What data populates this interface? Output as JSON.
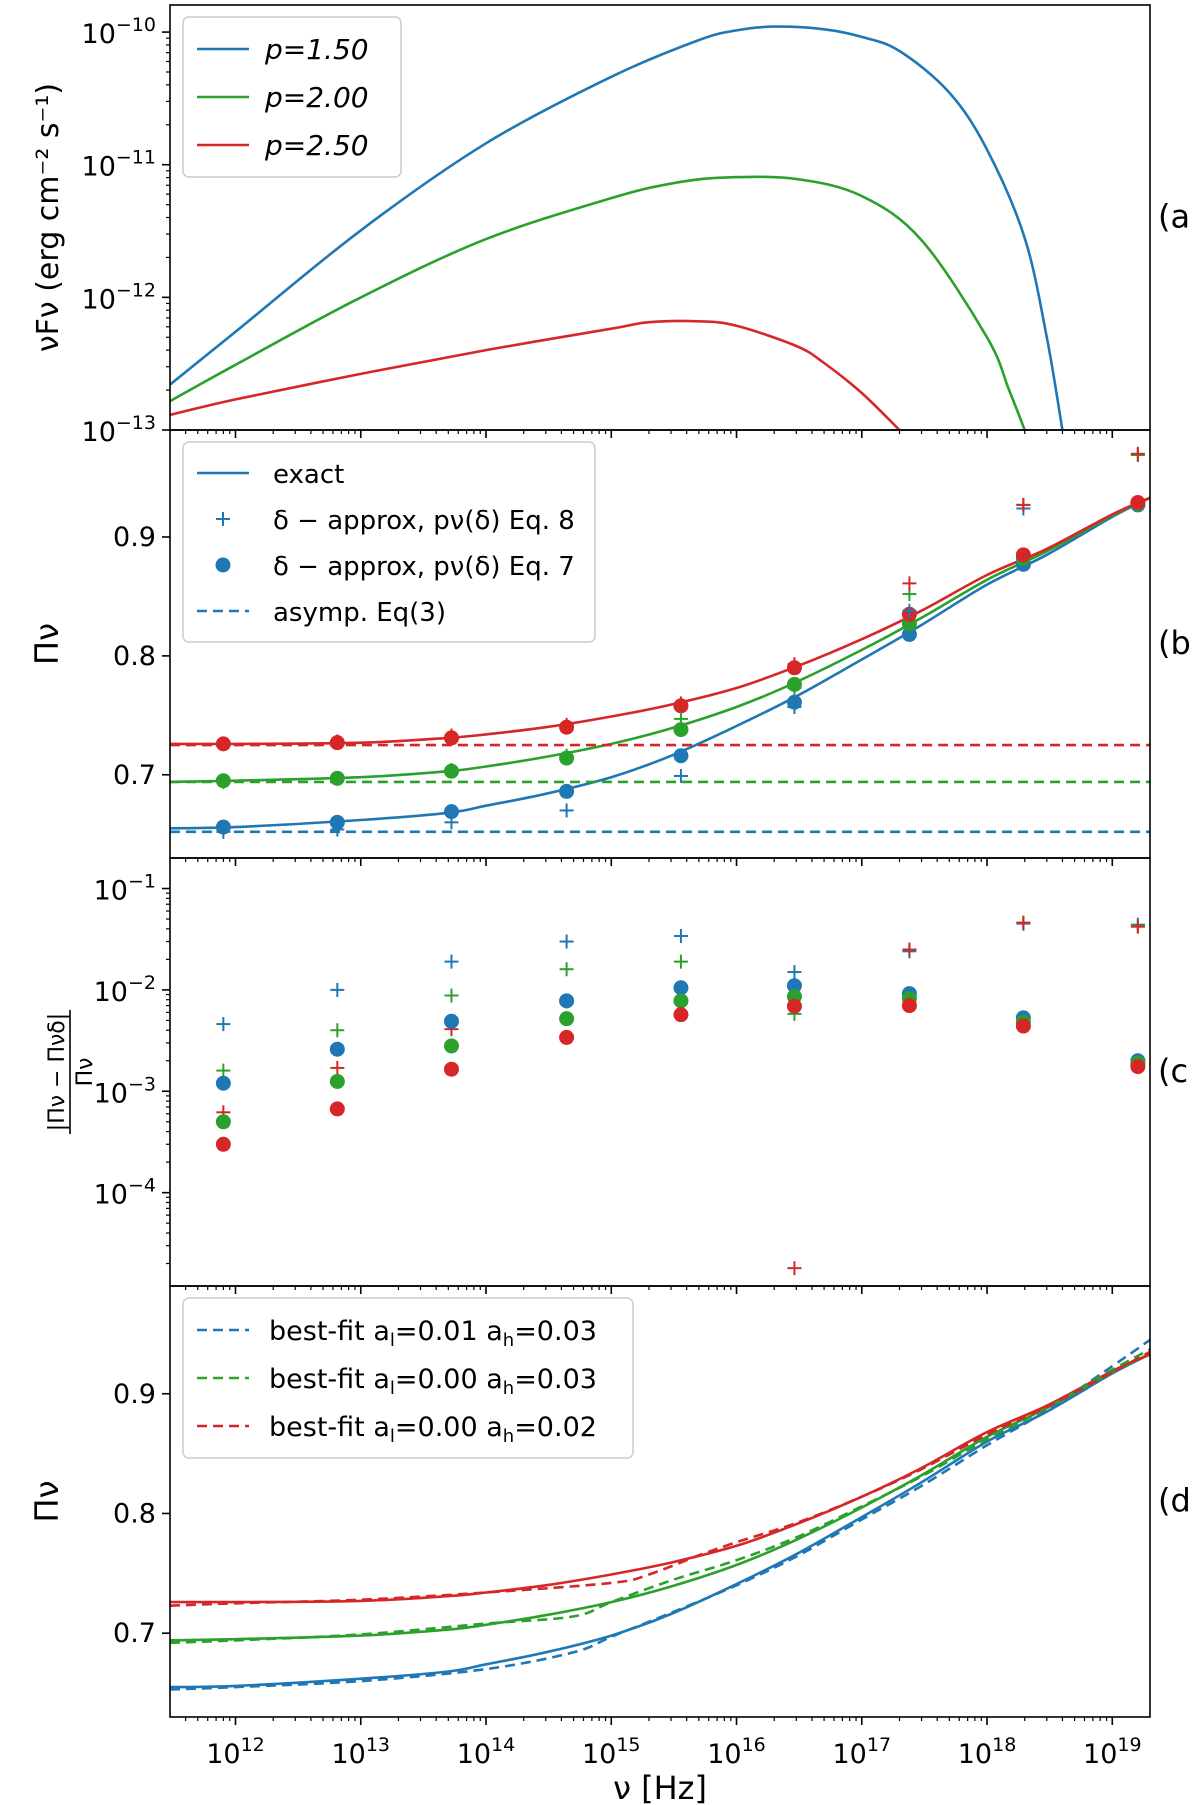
{
  "colors": {
    "blue": "#1f77b4",
    "green": "#2ca02c",
    "red": "#d62728",
    "axis": "#000000"
  },
  "xaxis": {
    "scale": "log",
    "lim": [
      300000000000.0,
      2e+19
    ],
    "label": "ν [Hz]",
    "ticks": [
      {
        "v": 1000000000000.0,
        "mant": "10",
        "exp": "12"
      },
      {
        "v": 10000000000000.0,
        "mant": "10",
        "exp": "13"
      },
      {
        "v": 100000000000000.0,
        "mant": "10",
        "exp": "14"
      },
      {
        "v": 1000000000000000.0,
        "mant": "10",
        "exp": "15"
      },
      {
        "v": 1e+16,
        "mant": "10",
        "exp": "16"
      },
      {
        "v": 1e+17,
        "mant": "10",
        "exp": "17"
      },
      {
        "v": 1e+18,
        "mant": "10",
        "exp": "18"
      },
      {
        "v": 1e+19,
        "mant": "10",
        "exp": "19"
      }
    ]
  },
  "chart_data": [
    {
      "panel": "a",
      "panel_label": "(a",
      "type": "line",
      "yscale": "log",
      "ylim": [
        1e-13,
        1.6e-10
      ],
      "ylabel": "νFν (erg cm⁻² s⁻¹)",
      "yticks": [
        {
          "v": 1e-13,
          "mant": "10",
          "exp": "−13"
        },
        {
          "v": 1e-12,
          "mant": "10",
          "exp": "−12"
        },
        {
          "v": 1e-11,
          "mant": "10",
          "exp": "−11"
        },
        {
          "v": 1e-10,
          "mant": "10",
          "exp": "−10"
        }
      ],
      "legend": {
        "position": "top-left",
        "entries": [
          {
            "label": "p=1.50",
            "color": "blue",
            "style": "solid"
          },
          {
            "label": "p=2.00",
            "color": "green",
            "style": "solid"
          },
          {
            "label": "p=2.50",
            "color": "red",
            "style": "solid"
          }
        ]
      },
      "series": [
        {
          "name": "p=1.50",
          "color": "blue",
          "style": "solid",
          "x": [
            300000000000.0,
            1000000000000.0,
            10000000000000.0,
            100000000000000.0,
            1000000000000000.0,
            5000000000000000.0,
            1e+16,
            2e+16,
            5e+16,
            1e+17,
            2e+17,
            5e+17,
            1e+18,
            2e+18,
            3e+18,
            4e+18
          ],
          "y": [
            2.2e-13,
            5.5e-13,
            3.2e-12,
            1.45e-11,
            4.6e-11,
            8.7e-11,
            1.03e-10,
            1.1e-10,
            1.05e-10,
            9.2e-11,
            7.2e-11,
            3.5e-11,
            1.3e-11,
            2.8e-12,
            5e-13,
            1e-13
          ]
        },
        {
          "name": "p=2.00",
          "color": "green",
          "style": "solid",
          "x": [
            300000000000.0,
            1000000000000.0,
            10000000000000.0,
            100000000000000.0,
            1000000000000000.0,
            3000000000000000.0,
            8000000000000000.0,
            3e+16,
            1e+17,
            3e+17,
            1e+18,
            1.5e+18,
            2e+18
          ],
          "y": [
            1.65e-13,
            3.1e-13,
            1e-12,
            2.75e-12,
            5.6e-12,
            7.2e-12,
            8e-12,
            7.8e-12,
            5.8e-12,
            2.7e-12,
            5e-13,
            2e-13,
            1e-13
          ]
        },
        {
          "name": "p=2.50",
          "color": "red",
          "style": "solid",
          "x": [
            300000000000.0,
            1000000000000.0,
            10000000000000.0,
            100000000000000.0,
            1000000000000000.0,
            2000000000000000.0,
            5000000000000000.0,
            1e+16,
            3e+16,
            5e+16,
            1e+17,
            2e+17
          ],
          "y": [
            1.3e-13,
            1.7e-13,
            2.65e-13,
            4e-13,
            5.8e-13,
            6.5e-13,
            6.6e-13,
            6.1e-13,
            4.3e-13,
            3.2e-13,
            1.9e-13,
            1e-13
          ]
        }
      ]
    },
    {
      "panel": "b",
      "panel_label": "(b",
      "type": "line",
      "yscale": "linear",
      "ylim": [
        0.63,
        0.99
      ],
      "ylabel": "Πν",
      "yticks": [
        {
          "v": 0.7,
          "text": "0.7"
        },
        {
          "v": 0.8,
          "text": "0.8"
        },
        {
          "v": 0.9,
          "text": "0.9"
        }
      ],
      "legend": {
        "position": "top-left",
        "entries": [
          {
            "label": "exact",
            "marker": "line",
            "color": "blue"
          },
          {
            "label": "δ − approx, pν(δ) Eq. 8",
            "marker": "plus",
            "color": "blue"
          },
          {
            "label": "δ − approx, pν(δ) Eq. 7",
            "marker": "dot",
            "color": "blue"
          },
          {
            "label": "asymp. Eq(3)",
            "marker": "dash",
            "color": "blue"
          }
        ]
      },
      "x_points": [
        800000000000.0,
        6500000000000.0,
        53000000000000.0,
        440000000000000.0,
        3600000000000000.0,
        2.9e+16,
        2.4e+17,
        1.95e+18,
        1.6e+19
      ],
      "series": [
        {
          "name": "p=1.50 exact",
          "color": "blue",
          "style": "solid",
          "x": [
            300000000000.0,
            1000000000000.0,
            10000000000000.0,
            50000000000000.0,
            100000000000000.0,
            300000000000000.0,
            1000000000000000.0,
            3000000000000000.0,
            1e+16,
            3e+16,
            1e+17,
            3e+17,
            1e+18,
            3e+18,
            1e+19,
            2e+19
          ],
          "y": [
            0.655,
            0.656,
            0.662,
            0.668,
            0.674,
            0.684,
            0.698,
            0.716,
            0.741,
            0.766,
            0.797,
            0.826,
            0.86,
            0.885,
            0.917,
            0.933
          ]
        },
        {
          "name": "p=2.00 exact",
          "color": "green",
          "style": "solid",
          "x": [
            300000000000.0,
            1000000000000.0,
            10000000000000.0,
            50000000000000.0,
            100000000000000.0,
            300000000000000.0,
            1000000000000000.0,
            3000000000000000.0,
            1e+16,
            3e+16,
            1e+17,
            3e+17,
            1e+18,
            3e+18,
            1e+19,
            2e+19
          ],
          "y": [
            0.694,
            0.695,
            0.698,
            0.703,
            0.707,
            0.715,
            0.726,
            0.739,
            0.757,
            0.778,
            0.805,
            0.832,
            0.864,
            0.888,
            0.918,
            0.933
          ]
        },
        {
          "name": "p=2.50 exact",
          "color": "red",
          "style": "solid",
          "x": [
            300000000000.0,
            1000000000000.0,
            10000000000000.0,
            50000000000000.0,
            100000000000000.0,
            300000000000000.0,
            1000000000000000.0,
            3000000000000000.0,
            1e+16,
            3e+16,
            1e+17,
            3e+17,
            1e+18,
            3e+18,
            1e+19,
            2e+19
          ],
          "y": [
            0.726,
            0.726,
            0.727,
            0.731,
            0.734,
            0.74,
            0.749,
            0.759,
            0.773,
            0.791,
            0.814,
            0.838,
            0.868,
            0.89,
            0.919,
            0.933
          ]
        },
        {
          "name": "p=1.50 asymp",
          "color": "blue",
          "style": "dashed",
          "x": [
            300000000000.0,
            2e+19
          ],
          "y": [
            0.652,
            0.652
          ]
        },
        {
          "name": "p=2.00 asymp",
          "color": "green",
          "style": "dashed",
          "x": [
            300000000000.0,
            2e+19
          ],
          "y": [
            0.694,
            0.694
          ]
        },
        {
          "name": "p=2.50 asymp",
          "color": "red",
          "style": "dashed",
          "x": [
            300000000000.0,
            2e+19
          ],
          "y": [
            0.725,
            0.725
          ]
        },
        {
          "name": "p=1.50 Eq.7",
          "color": "blue",
          "marker": "dot",
          "y": [
            0.656,
            0.66,
            0.669,
            0.686,
            0.716,
            0.761,
            0.818,
            0.877,
            0.927
          ]
        },
        {
          "name": "p=2.00 Eq.7",
          "color": "green",
          "marker": "dot",
          "y": [
            0.695,
            0.697,
            0.703,
            0.714,
            0.738,
            0.776,
            0.827,
            0.882,
            0.928
          ]
        },
        {
          "name": "p=2.50 Eq.7",
          "color": "red",
          "marker": "dot",
          "y": [
            0.726,
            0.727,
            0.731,
            0.74,
            0.758,
            0.79,
            0.835,
            0.885,
            0.929
          ]
        },
        {
          "name": "p=1.50 Eq.8",
          "color": "blue",
          "marker": "plus",
          "y": [
            0.652,
            0.654,
            0.66,
            0.67,
            0.699,
            0.757,
            0.838,
            0.924,
            0.969
          ]
        },
        {
          "name": "p=2.00 Eq.8",
          "color": "green",
          "marker": "plus",
          "y": [
            0.694,
            0.697,
            0.704,
            0.716,
            0.747,
            0.773,
            0.852,
            0.927,
            0.969
          ]
        },
        {
          "name": "p=2.50 Eq.8",
          "color": "red",
          "marker": "plus",
          "y": [
            0.726,
            0.728,
            0.733,
            0.742,
            0.76,
            0.793,
            0.861,
            0.927,
            0.97
          ]
        }
      ]
    },
    {
      "panel": "c",
      "panel_label": "(c",
      "type": "scatter",
      "yscale": "log",
      "ylim": [
        1.2e-05,
        0.2
      ],
      "ylabel": "|Πν − Πνδ| / Πν",
      "yticks": [
        {
          "v": 0.0001,
          "mant": "10",
          "exp": "−4"
        },
        {
          "v": 0.001,
          "mant": "10",
          "exp": "−3"
        },
        {
          "v": 0.01,
          "mant": "10",
          "exp": "−2"
        },
        {
          "v": 0.1,
          "mant": "10",
          "exp": "−1"
        }
      ],
      "x_points": [
        800000000000.0,
        6500000000000.0,
        53000000000000.0,
        440000000000000.0,
        3600000000000000.0,
        2.9e+16,
        2.4e+17,
        1.95e+18,
        1.6e+19
      ],
      "series": [
        {
          "name": "p=1.50 Eq.8",
          "color": "blue",
          "marker": "plus",
          "y": [
            0.0046,
            0.01,
            0.019,
            0.03,
            0.034,
            0.015,
            0.024,
            0.045,
            0.044
          ]
        },
        {
          "name": "p=2.00 Eq.8",
          "color": "green",
          "marker": "plus",
          "y": [
            0.0016,
            0.004,
            0.0088,
            0.016,
            0.019,
            0.0058,
            0.025,
            0.046,
            0.043
          ]
        },
        {
          "name": "p=2.50 Eq.8",
          "color": "red",
          "marker": "plus",
          "y": [
            0.00062,
            0.0017,
            0.0041,
            0.0077,
            0.01,
            1.8e-05,
            0.025,
            0.046,
            0.042
          ]
        },
        {
          "name": "p=1.50 Eq.7",
          "color": "blue",
          "marker": "dot",
          "y": [
            0.0012,
            0.0026,
            0.0049,
            0.0078,
            0.0105,
            0.011,
            0.0092,
            0.0053,
            0.002
          ]
        },
        {
          "name": "p=2.00 Eq.7",
          "color": "green",
          "marker": "dot",
          "y": [
            0.0005,
            0.00125,
            0.0028,
            0.0052,
            0.0078,
            0.0086,
            0.0082,
            0.0048,
            0.0019
          ]
        },
        {
          "name": "p=2.50 Eq.7",
          "color": "red",
          "marker": "dot",
          "y": [
            0.0003,
            0.00067,
            0.00165,
            0.0034,
            0.0057,
            0.0069,
            0.007,
            0.0044,
            0.00175
          ]
        }
      ]
    },
    {
      "panel": "d",
      "panel_label": "(d",
      "type": "line",
      "yscale": "linear",
      "ylim": [
        0.63,
        0.99
      ],
      "ylabel": "Πν",
      "yticks": [
        {
          "v": 0.7,
          "text": "0.7"
        },
        {
          "v": 0.8,
          "text": "0.8"
        },
        {
          "v": 0.9,
          "text": "0.9"
        }
      ],
      "legend": {
        "position": "top-left",
        "entries": [
          {
            "color": "blue",
            "style": "dashed",
            "prefix": "best-fit ",
            "a_l": "0.01",
            "a_h": "0.03"
          },
          {
            "color": "green",
            "style": "dashed",
            "prefix": "best-fit ",
            "a_l": "0.00",
            "a_h": "0.03"
          },
          {
            "color": "red",
            "style": "dashed",
            "prefix": "best-fit ",
            "a_l": "0.00",
            "a_h": "0.02"
          }
        ]
      },
      "series": [
        {
          "name": "p=1.50 exact",
          "color": "blue",
          "style": "solid",
          "x": [
            300000000000.0,
            1000000000000.0,
            10000000000000.0,
            50000000000000.0,
            100000000000000.0,
            300000000000000.0,
            1000000000000000.0,
            3000000000000000.0,
            1e+16,
            3e+16,
            1e+17,
            3e+17,
            1e+18,
            3e+18,
            1e+19,
            2e+19
          ],
          "y": [
            0.655,
            0.656,
            0.662,
            0.668,
            0.674,
            0.684,
            0.698,
            0.716,
            0.741,
            0.766,
            0.797,
            0.826,
            0.86,
            0.885,
            0.917,
            0.933
          ]
        },
        {
          "name": "p=2.00 exact",
          "color": "green",
          "style": "solid",
          "x": [
            300000000000.0,
            1000000000000.0,
            10000000000000.0,
            50000000000000.0,
            100000000000000.0,
            300000000000000.0,
            1000000000000000.0,
            3000000000000000.0,
            1e+16,
            3e+16,
            1e+17,
            3e+17,
            1e+18,
            3e+18,
            1e+19,
            2e+19
          ],
          "y": [
            0.694,
            0.695,
            0.698,
            0.703,
            0.707,
            0.715,
            0.726,
            0.739,
            0.757,
            0.778,
            0.805,
            0.832,
            0.864,
            0.888,
            0.918,
            0.933
          ]
        },
        {
          "name": "p=2.50 exact",
          "color": "red",
          "style": "solid",
          "x": [
            300000000000.0,
            1000000000000.0,
            10000000000000.0,
            50000000000000.0,
            100000000000000.0,
            300000000000000.0,
            1000000000000000.0,
            3000000000000000.0,
            1e+16,
            3e+16,
            1e+17,
            3e+17,
            1e+18,
            3e+18,
            1e+19,
            2e+19
          ],
          "y": [
            0.726,
            0.726,
            0.727,
            0.731,
            0.734,
            0.74,
            0.749,
            0.759,
            0.773,
            0.791,
            0.814,
            0.838,
            0.868,
            0.89,
            0.919,
            0.933
          ]
        },
        {
          "name": "p=1.50 best-fit",
          "color": "blue",
          "style": "dashed",
          "x": [
            300000000000.0,
            1000000000000.0,
            10000000000000.0,
            100000000000000.0,
            500000000000000.0,
            1000000000000000.0,
            3000000000000000.0,
            1e+16,
            3e+16,
            1e+17,
            3e+17,
            1e+18,
            3e+18,
            1e+19,
            2e+19
          ],
          "y": [
            0.653,
            0.655,
            0.66,
            0.67,
            0.684,
            0.697,
            0.717,
            0.74,
            0.764,
            0.795,
            0.823,
            0.857,
            0.886,
            0.923,
            0.945
          ]
        },
        {
          "name": "p=2.00 best-fit",
          "color": "green",
          "style": "dashed",
          "x": [
            300000000000.0,
            1000000000000.0,
            10000000000000.0,
            100000000000000.0,
            500000000000000.0,
            1000000000000000.0,
            3000000000000000.0,
            1e+16,
            3e+16,
            1e+17,
            3e+17,
            1e+18,
            3e+18,
            1e+19,
            2e+19
          ],
          "y": [
            0.692,
            0.694,
            0.699,
            0.708,
            0.714,
            0.726,
            0.744,
            0.761,
            0.78,
            0.806,
            0.831,
            0.862,
            0.888,
            0.92,
            0.937
          ]
        },
        {
          "name": "p=2.50 best-fit",
          "color": "red",
          "style": "dashed",
          "x": [
            300000000000.0,
            1000000000000.0,
            10000000000000.0,
            100000000000000.0,
            1000000000000000.0,
            2000000000000000.0,
            5000000000000000.0,
            1e+16,
            3e+16,
            1e+17,
            3e+17,
            1e+18,
            3e+18,
            1e+19,
            2e+19
          ],
          "y": [
            0.723,
            0.725,
            0.728,
            0.734,
            0.742,
            0.749,
            0.765,
            0.776,
            0.792,
            0.814,
            0.837,
            0.866,
            0.889,
            0.918,
            0.935
          ]
        }
      ]
    }
  ]
}
